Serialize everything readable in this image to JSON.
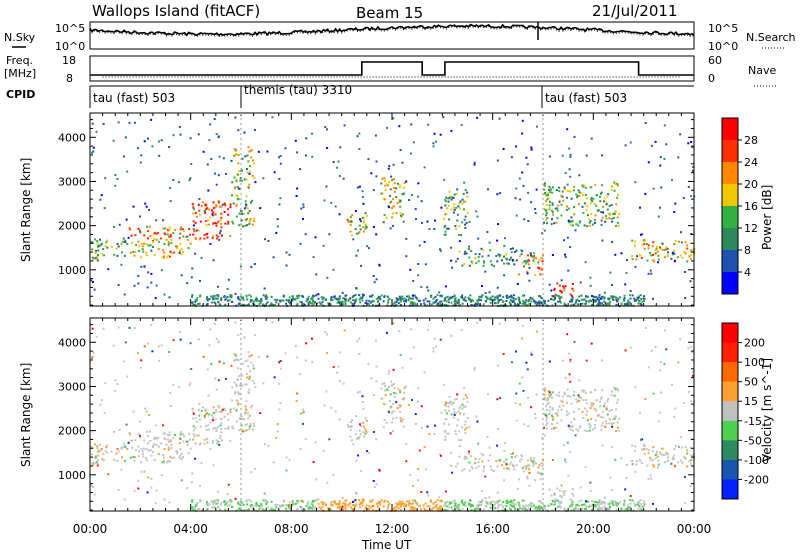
{
  "header": {
    "station": "Wallops Island (fitACF)",
    "beam": "Beam 15",
    "date": "21/Jul/2011"
  },
  "top_panel": {
    "left_label": "N.Sky",
    "left_ticks": [
      "10^5",
      "10^0"
    ],
    "right_label": "N.Search",
    "right_ticks": [
      "10^5",
      "10^0"
    ]
  },
  "freq_panel": {
    "left_label_1": "Freq.",
    "left_label_2": "[MHz]",
    "left_ticks": [
      "18",
      "8"
    ],
    "right_label": "Nave",
    "right_ticks": [
      "60",
      "0"
    ]
  },
  "cpid": {
    "label": "CPID",
    "segments": [
      "tau (fast) 503",
      "themis (tau) 3310",
      "tau (fast) 503"
    ]
  },
  "colors": {
    "power_scale": [
      "#0000ff",
      "#2050b0",
      "#2a8a5a",
      "#32b040",
      "#f0c800",
      "#ff8800",
      "#ff3000",
      "#ff0000"
    ],
    "velocity_scale": [
      "#0022ff",
      "#1a55b0",
      "#2e8a60",
      "#4fd04f",
      "#c0c0c0",
      "#ffa030",
      "#ff6a00",
      "#ff2000",
      "#ff0000"
    ],
    "scatter_gray": "#c4c4c4"
  },
  "chart_data": [
    {
      "type": "heatmap",
      "title": "",
      "xlabel": "Time UT",
      "ylabel": "Slant Range [km]",
      "xlim": [
        0,
        24
      ],
      "ylim": [
        180,
        4550
      ],
      "x_ticks": [
        "00:00",
        "04:00",
        "08:00",
        "12:00",
        "16:00",
        "20:00",
        "00:00"
      ],
      "y_ticks": [
        "1000",
        "2000",
        "3000",
        "4000"
      ],
      "colorbar": {
        "label": "Power [dB]",
        "ticks": [
          "28",
          "24",
          "20",
          "16",
          "12",
          "8",
          "4"
        ],
        "range": [
          0,
          30
        ]
      },
      "regions": [
        {
          "time": [
            0.0,
            1.5
          ],
          "range": [
            1250,
            1750
          ],
          "value": 12
        },
        {
          "time": [
            1.5,
            4.0
          ],
          "range": [
            1300,
            2000
          ],
          "value": 20
        },
        {
          "time": [
            4.0,
            5.6
          ],
          "range": [
            1700,
            2600
          ],
          "value": 24
        },
        {
          "time": [
            5.6,
            6.5
          ],
          "range": [
            2000,
            3800
          ],
          "value": 14
        },
        {
          "time": [
            10.0,
            11.0
          ],
          "range": [
            1800,
            2300
          ],
          "value": 16
        },
        {
          "time": [
            11.5,
            12.5
          ],
          "range": [
            2200,
            3100
          ],
          "value": 16
        },
        {
          "time": [
            14.0,
            15.0
          ],
          "range": [
            1800,
            2800
          ],
          "value": 12
        },
        {
          "time": [
            14.5,
            17.5
          ],
          "range": [
            1100,
            1500
          ],
          "value": 10
        },
        {
          "time": [
            17.0,
            18.0
          ],
          "range": [
            900,
            1400
          ],
          "value": 20
        },
        {
          "time": [
            18.3,
            19.2
          ],
          "range": [
            400,
            800
          ],
          "value": 28
        },
        {
          "time": [
            18.0,
            21.0
          ],
          "range": [
            2000,
            3000
          ],
          "value": 14
        },
        {
          "time": [
            21.5,
            24.0
          ],
          "range": [
            1200,
            1700
          ],
          "value": 18
        }
      ]
    },
    {
      "type": "heatmap",
      "title": "",
      "xlabel": "Time UT",
      "ylabel": "Slant Range [km]",
      "xlim": [
        0,
        24
      ],
      "ylim": [
        180,
        4550
      ],
      "x_ticks": [
        "00:00",
        "04:00",
        "08:00",
        "12:00",
        "16:00",
        "20:00",
        "00:00"
      ],
      "y_ticks": [
        "1000",
        "2000",
        "3000",
        "4000"
      ],
      "colorbar": {
        "label": "Velocity [m s^-1]",
        "ticks": [
          "200",
          "100",
          "50",
          "15",
          "-15",
          "-50",
          "-100",
          "-200"
        ],
        "range": [
          -250,
          250
        ]
      }
    }
  ]
}
